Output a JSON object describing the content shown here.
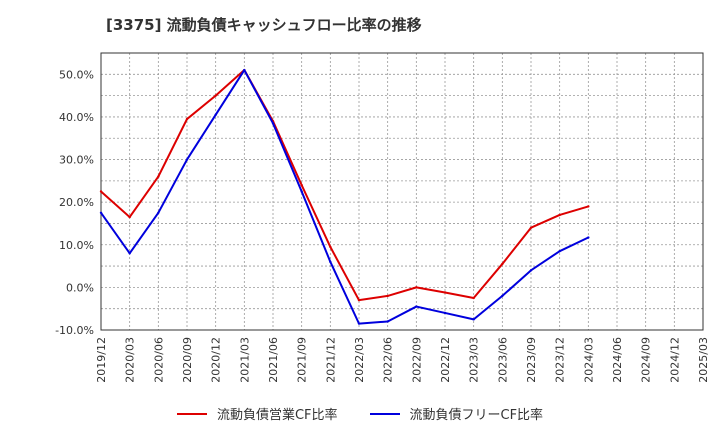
{
  "chart_data": {
    "type": "line",
    "title": "[3375]  流動負債キャッシュフロー比率の推移",
    "xlabel": "",
    "ylabel": "",
    "x": [
      "2019/12",
      "2020/03",
      "2020/06",
      "2020/09",
      "2020/12",
      "2021/03",
      "2021/06",
      "2021/09",
      "2021/12",
      "2022/03",
      "2022/06",
      "2022/09",
      "2022/12",
      "2023/03",
      "2023/06",
      "2023/09",
      "2023/12",
      "2024/03",
      "2024/06",
      "2024/09",
      "2024/12",
      "2025/03"
    ],
    "ylim": [
      -10,
      55
    ],
    "yticks": [
      -10,
      0,
      10,
      20,
      30,
      40,
      50
    ],
    "ytick_labels": [
      "-10.0%",
      "0.0%",
      "10.0%",
      "20.0%",
      "30.0%",
      "40.0%",
      "50.0%"
    ],
    "grid": true,
    "legend_position": "bottom",
    "series": [
      {
        "name": "流動負債営業CF比率",
        "color": "#dd0000",
        "values": [
          22.5,
          16.5,
          26.0,
          39.5,
          45.0,
          51.0,
          39.0,
          24.0,
          9.5,
          -3.0,
          -2.0,
          0.0,
          -1.2,
          -2.5,
          5.5,
          14.0,
          17.0,
          19.0,
          null,
          null,
          null,
          null
        ]
      },
      {
        "name": "流動負債フリーCF比率",
        "color": "#0000dd",
        "values": [
          17.5,
          8.0,
          17.5,
          30.0,
          40.5,
          51.0,
          38.5,
          22.5,
          6.0,
          -8.5,
          -8.0,
          -4.5,
          -6.0,
          -7.5,
          -2.0,
          4.0,
          8.5,
          11.7,
          null,
          null,
          null,
          null
        ]
      }
    ]
  }
}
